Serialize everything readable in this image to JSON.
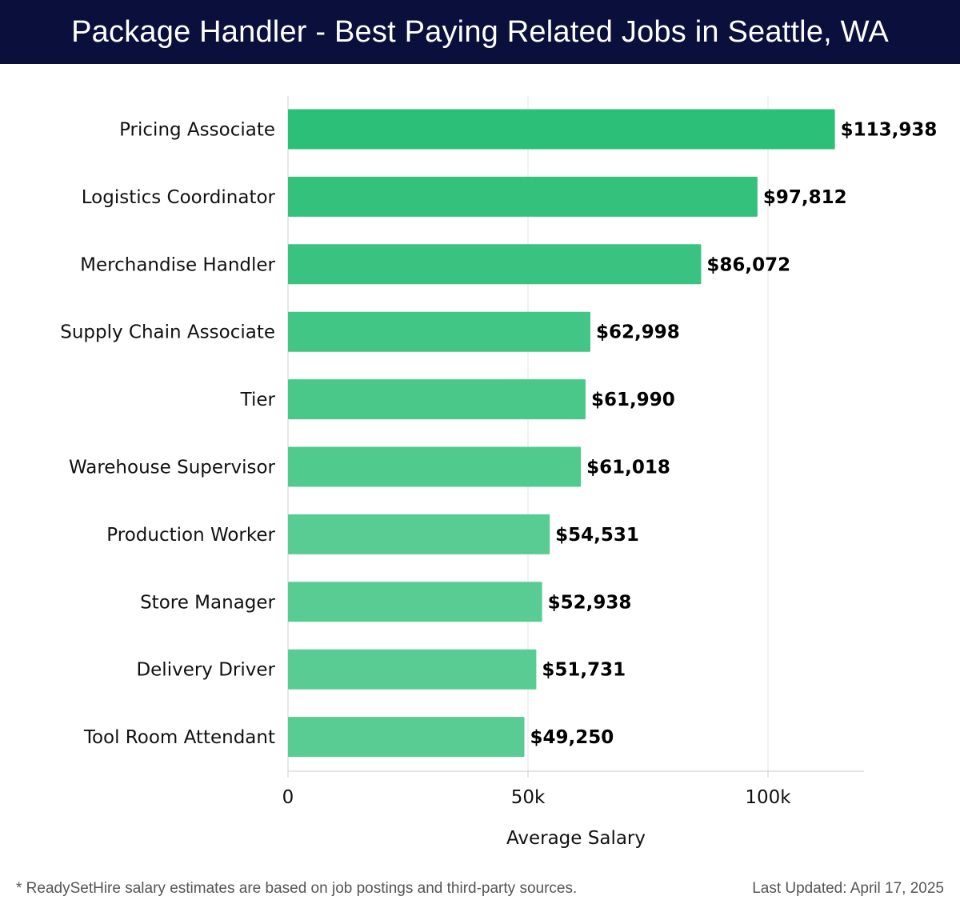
{
  "header": {
    "title": "Package Handler - Best Paying Related Jobs in Seattle, WA"
  },
  "chart_data": {
    "type": "bar",
    "orientation": "horizontal",
    "categories": [
      "Pricing Associate",
      "Logistics Coordinator",
      "Merchandise Handler",
      "Supply Chain Associate",
      "Tier",
      "Warehouse Supervisor",
      "Production Worker",
      "Store Manager",
      "Delivery Driver",
      "Tool Room Attendant"
    ],
    "values": [
      113938,
      97812,
      86072,
      62998,
      61990,
      61018,
      54531,
      52938,
      51731,
      49250
    ],
    "value_labels": [
      "$113,938",
      "$97,812",
      "$86,072",
      "$62,998",
      "$61,990",
      "$61,018",
      "$54,531",
      "$52,938",
      "$51,731",
      "$49,250"
    ],
    "xlabel": "Average Salary",
    "ylabel": "",
    "xlim": [
      0,
      120000
    ],
    "xticks": [
      0,
      50000,
      100000
    ],
    "xtick_labels": [
      "0",
      "50k",
      "100k"
    ],
    "grid": true,
    "legend": "none",
    "colors": {
      "bar_top": "#2bbf77",
      "bar_bottom": "#58cc93",
      "grid": "#e3e3e3",
      "axis": "#cfcfcf"
    }
  },
  "footer": {
    "note": "* ReadySetHire salary estimates are based on job postings and third-party sources.",
    "updated": "Last Updated: April 17, 2025"
  }
}
